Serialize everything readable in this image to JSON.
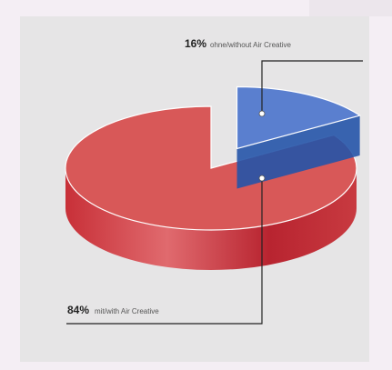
{
  "chart_data": {
    "type": "pie",
    "style": "3d-exploded",
    "slices": [
      {
        "percent": 84,
        "percent_label": "84%",
        "label": "mit/with Air Creative",
        "color": "#d85858",
        "side_color": "#b8242f"
      },
      {
        "percent": 16,
        "percent_label": "16%",
        "label": "ohne/without Air Creative",
        "color": "#5a7fcf",
        "side_color": "#2554a8"
      }
    ],
    "exploded_slice": 1,
    "background": "#e6e5e6"
  }
}
